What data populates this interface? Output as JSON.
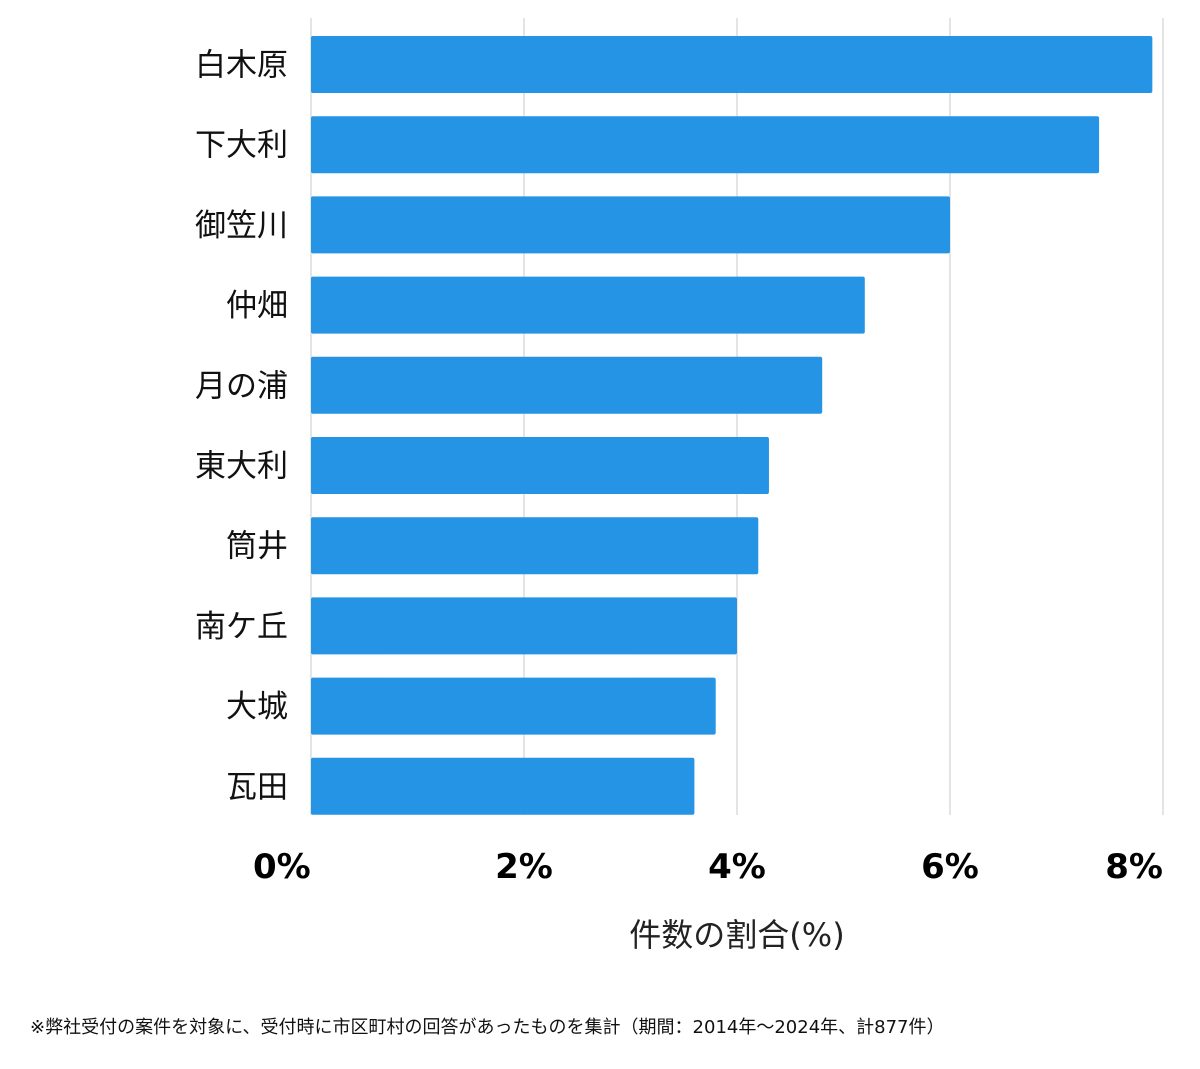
{
  "chart_data": {
    "type": "bar",
    "orientation": "horizontal",
    "categories": [
      "白木原",
      "下大利",
      "御笠川",
      "仲畑",
      "月の浦",
      "東大利",
      "筒井",
      "南ケ丘",
      "大城",
      "瓦田"
    ],
    "values": [
      7.9,
      7.4,
      6.0,
      5.2,
      4.8,
      4.3,
      4.2,
      4.0,
      3.8,
      3.6
    ],
    "xlabel": "件数の割合(%)",
    "xlim": [
      0,
      8
    ],
    "xticks": [
      0,
      2,
      4,
      6,
      8
    ],
    "xtick_labels": [
      "0%",
      "2%",
      "4%",
      "6%",
      "8%"
    ],
    "grid": true,
    "bar_color": "#2594e4"
  },
  "footnote": "※弊社受付の案件を対象に、受付時に市区町村の回答があったものを集計（期間：2014年〜2024年、計877件）"
}
